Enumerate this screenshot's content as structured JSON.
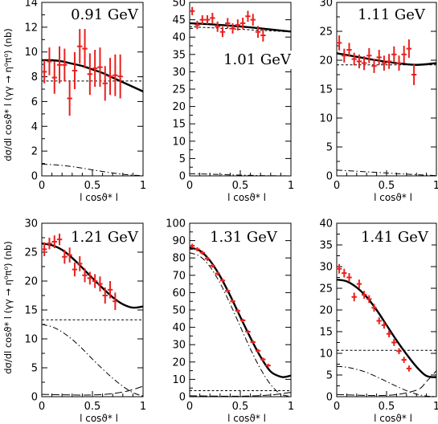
{
  "figure": {
    "ylabel_top": "dσ/dl cosϑ* l (γγ → η⁰π⁰) (nb)",
    "ylabel_bottom": "dσ/dl cosϑ* l (γγ → η⁰π⁰) (nb)"
  },
  "chart_data": [
    {
      "type": "scatter",
      "title": "0.91 GeV",
      "xlabel": "l cosϑ* l",
      "xlim": [
        0,
        1
      ],
      "ylim": [
        0,
        15
      ],
      "xticks": [
        "0",
        "0.5",
        "1"
      ],
      "yticks": [
        "0",
        "2",
        "4",
        "6",
        "8",
        "10",
        "12",
        "14"
      ],
      "points": {
        "x": [
          0.025,
          0.075,
          0.125,
          0.175,
          0.225,
          0.275,
          0.325,
          0.375,
          0.425,
          0.475,
          0.525,
          0.575,
          0.625,
          0.675,
          0.725,
          0.775
        ],
        "y": [
          9.0,
          9.9,
          8.5,
          9.6,
          9.6,
          6.7,
          9.1,
          11.2,
          11.0,
          8.8,
          9.3,
          9.4,
          8.0,
          8.6,
          8.7,
          8.6
        ],
        "err": [
          1.0,
          1.2,
          1.4,
          1.6,
          1.4,
          1.5,
          1.6,
          1.5,
          1.7,
          1.8,
          1.6,
          1.7,
          1.5,
          1.6,
          1.8,
          1.9
        ]
      },
      "curves": [
        {
          "name": "total",
          "x": [
            0,
            0.1,
            0.2,
            0.3,
            0.4,
            0.5,
            0.6,
            0.7,
            0.8,
            0.9,
            1.0
          ],
          "y": [
            10.0,
            10.0,
            9.9,
            9.7,
            9.5,
            9.2,
            8.9,
            8.5,
            8.1,
            7.7,
            7.3
          ]
        },
        {
          "name": "dashed",
          "x": [
            0,
            1
          ],
          "y": [
            8.2,
            8.2
          ]
        },
        {
          "name": "dash-dot",
          "x": [
            0,
            0.1,
            0.2,
            0.3,
            0.4,
            0.5,
            0.6,
            0.7,
            0.8,
            0.9,
            1.0
          ],
          "y": [
            1.0,
            0.97,
            0.9,
            0.8,
            0.67,
            0.52,
            0.38,
            0.25,
            0.14,
            0.06,
            0.02
          ]
        }
      ]
    },
    {
      "type": "scatter",
      "title": "1.01 GeV",
      "xlabel": "l cosϑ* l",
      "xlim": [
        0,
        1
      ],
      "ylim": [
        0,
        50
      ],
      "xticks": [
        "0",
        "0.5",
        "1"
      ],
      "yticks": [
        "0",
        "5",
        "10",
        "15",
        "20",
        "25",
        "30",
        "35",
        "40",
        "45",
        "50"
      ],
      "points": {
        "x": [
          0.025,
          0.075,
          0.125,
          0.175,
          0.225,
          0.275,
          0.325,
          0.375,
          0.425,
          0.475,
          0.525,
          0.575,
          0.625,
          0.675,
          0.725
        ],
        "y": [
          47.5,
          43.5,
          45.0,
          45.0,
          45.5,
          43.0,
          41.5,
          44.0,
          42.5,
          43.5,
          44.0,
          46.0,
          45.0,
          41.5,
          40.5
        ],
        "err": [
          1.2,
          1.2,
          1.3,
          1.3,
          1.5,
          1.5,
          1.5,
          1.5,
          1.5,
          1.6,
          1.6,
          1.6,
          1.7,
          1.7,
          1.8
        ]
      },
      "curves": [
        {
          "name": "total",
          "x": [
            0,
            0.2,
            0.4,
            0.6,
            0.8,
            1.0
          ],
          "y": [
            44.0,
            43.7,
            43.3,
            42.8,
            42.2,
            41.6
          ]
        },
        {
          "name": "dashed",
          "x": [
            0,
            1
          ],
          "y": [
            43.0,
            41.5
          ]
        },
        {
          "name": "dash-dot",
          "x": [
            0,
            0.2,
            0.4,
            0.6,
            0.8,
            1.0
          ],
          "y": [
            0.6,
            0.5,
            0.3,
            0.15,
            0.05,
            0.0
          ]
        }
      ]
    },
    {
      "type": "scatter",
      "title": "1.11 GeV",
      "xlabel": "l cosϑ* l",
      "xlim": [
        0,
        1
      ],
      "ylim": [
        0,
        30
      ],
      "xticks": [
        "0",
        "0.5",
        "1"
      ],
      "yticks": [
        "0",
        "5",
        "10",
        "15",
        "20",
        "25",
        "30"
      ],
      "points": {
        "x": [
          0.025,
          0.075,
          0.125,
          0.175,
          0.225,
          0.275,
          0.325,
          0.375,
          0.425,
          0.475,
          0.525,
          0.575,
          0.625,
          0.675,
          0.725,
          0.775
        ],
        "y": [
          23.0,
          20.8,
          21.8,
          20.2,
          19.8,
          19.5,
          20.8,
          19.0,
          20.5,
          19.5,
          19.8,
          21.0,
          19.5,
          21.0,
          22.0,
          17.5
        ],
        "err": [
          1.3,
          1.2,
          1.2,
          1.1,
          1.2,
          1.2,
          1.3,
          1.2,
          1.3,
          1.3,
          1.3,
          1.4,
          1.3,
          1.5,
          1.6,
          1.8
        ]
      },
      "curves": [
        {
          "name": "total",
          "x": [
            0,
            0.2,
            0.4,
            0.6,
            0.8,
            1.0
          ],
          "y": [
            21.2,
            20.6,
            20.0,
            19.5,
            19.2,
            19.5
          ]
        },
        {
          "name": "dashed",
          "x": [
            0,
            1
          ],
          "y": [
            19.2,
            19.2
          ]
        },
        {
          "name": "dash-dot",
          "x": [
            0,
            0.2,
            0.4,
            0.6,
            0.8,
            1.0
          ],
          "y": [
            1.0,
            0.8,
            0.6,
            0.4,
            0.2,
            0.05
          ]
        }
      ]
    },
    {
      "type": "scatter",
      "title": "1.21 GeV",
      "xlabel": "l cosϑ* l",
      "xlim": [
        0,
        1
      ],
      "ylim": [
        0,
        30
      ],
      "xticks": [
        "0",
        "0.5",
        "1"
      ],
      "yticks": [
        "0",
        "5",
        "10",
        "15",
        "20",
        "25",
        "30"
      ],
      "points": {
        "x": [
          0.025,
          0.075,
          0.125,
          0.175,
          0.225,
          0.275,
          0.325,
          0.375,
          0.425,
          0.475,
          0.525,
          0.575,
          0.625,
          0.675,
          0.725
        ],
        "y": [
          25.5,
          26.5,
          26.8,
          27.2,
          24.2,
          24.5,
          22.0,
          23.0,
          21.0,
          20.5,
          20.0,
          19.5,
          17.5,
          18.5,
          16.5
        ],
        "err": [
          1.2,
          1.0,
          1.1,
          1.0,
          1.2,
          1.3,
          1.2,
          1.3,
          1.2,
          1.1,
          1.2,
          1.3,
          1.4,
          1.5,
          1.5
        ]
      },
      "curves": [
        {
          "name": "total",
          "x": [
            0,
            0.1,
            0.2,
            0.3,
            0.4,
            0.5,
            0.6,
            0.7,
            0.8,
            0.9,
            1.0
          ],
          "y": [
            26.5,
            26.2,
            25.4,
            24.0,
            22.3,
            20.5,
            18.8,
            17.2,
            16.0,
            15.4,
            15.6
          ]
        },
        {
          "name": "dashed",
          "x": [
            0,
            1
          ],
          "y": [
            13.3,
            13.3
          ]
        },
        {
          "name": "dash-dot",
          "x": [
            0,
            0.1,
            0.2,
            0.3,
            0.4,
            0.5,
            0.6,
            0.7,
            0.8,
            0.9,
            1.0
          ],
          "y": [
            12.5,
            12.1,
            11.2,
            9.9,
            8.3,
            6.5,
            4.8,
            3.2,
            1.8,
            0.7,
            0.1
          ]
        },
        {
          "name": "long-dash",
          "x": [
            0,
            0.5,
            0.8,
            1.0
          ],
          "y": [
            0.4,
            0.3,
            0.8,
            1.8
          ]
        }
      ]
    },
    {
      "type": "scatter",
      "title": "1.31 GeV",
      "xlabel": "l cosϑ* l",
      "xlim": [
        0,
        1
      ],
      "ylim": [
        0,
        100
      ],
      "xticks": [
        "0",
        "0.5",
        "1"
      ],
      "yticks": [
        "0",
        "10",
        "20",
        "30",
        "40",
        "50",
        "60",
        "70",
        "80",
        "90",
        "100"
      ],
      "points": {
        "x": [
          0.025,
          0.075,
          0.125,
          0.175,
          0.225,
          0.275,
          0.325,
          0.375,
          0.425,
          0.475,
          0.525,
          0.575,
          0.625,
          0.675,
          0.725,
          0.775
        ],
        "y": [
          87.0,
          85.0,
          83.0,
          79.5,
          75.5,
          71.0,
          67.0,
          61.0,
          55.0,
          49.5,
          44.0,
          37.5,
          31.5,
          26.5,
          21.5,
          18.0
        ],
        "err": [
          1.2,
          1.2,
          1.2,
          1.2,
          1.1,
          1.1,
          1.1,
          1.1,
          1.1,
          1.1,
          1.0,
          1.0,
          1.0,
          1.0,
          1.0,
          1.0
        ]
      },
      "curves": [
        {
          "name": "total",
          "x": [
            0,
            0.1,
            0.2,
            0.3,
            0.4,
            0.5,
            0.6,
            0.7,
            0.8,
            0.9,
            0.95,
            1.0
          ],
          "y": [
            86.0,
            84.2,
            78.5,
            69.5,
            58.3,
            46.0,
            34.0,
            23.0,
            14.5,
            11.5,
            11.5,
            12.2
          ]
        },
        {
          "name": "dashed",
          "x": [
            0,
            1
          ],
          "y": [
            3.5,
            3.5
          ]
        },
        {
          "name": "dash-dot",
          "x": [
            0,
            0.1,
            0.2,
            0.3,
            0.4,
            0.5,
            0.6,
            0.7,
            0.8,
            0.9,
            1.0
          ],
          "y": [
            83.0,
            81.0,
            75.0,
            65.5,
            53.5,
            40.5,
            27.5,
            16.0,
            7.0,
            1.5,
            0.2
          ]
        },
        {
          "name": "long-dash",
          "x": [
            0,
            0.5,
            0.8,
            1.0
          ],
          "y": [
            0.5,
            0.3,
            1.0,
            2.5
          ]
        }
      ]
    },
    {
      "type": "scatter",
      "title": "1.41 GeV",
      "xlabel": "l cosϑ* l",
      "xlim": [
        0,
        1
      ],
      "ylim": [
        0,
        40
      ],
      "xticks": [
        "0",
        "0.5",
        "1"
      ],
      "yticks": [
        "0",
        "5",
        "10",
        "15",
        "20",
        "25",
        "30",
        "35",
        "40"
      ],
      "points": {
        "x": [
          0.025,
          0.075,
          0.125,
          0.175,
          0.225,
          0.275,
          0.325,
          0.375,
          0.425,
          0.475,
          0.525,
          0.575,
          0.625,
          0.675,
          0.725
        ],
        "y": [
          29.5,
          28.5,
          27.5,
          23.0,
          26.0,
          23.5,
          22.5,
          20.5,
          17.5,
          16.5,
          14.5,
          12.5,
          10.5,
          8.5,
          6.5
        ],
        "err": [
          1.1,
          1.0,
          1.0,
          1.0,
          1.0,
          0.9,
          0.9,
          0.9,
          0.8,
          0.8,
          0.8,
          0.8,
          0.7,
          0.7,
          0.7
        ]
      },
      "curves": [
        {
          "name": "total",
          "x": [
            0,
            0.1,
            0.2,
            0.3,
            0.4,
            0.5,
            0.6,
            0.7,
            0.8,
            0.9,
            1.0
          ],
          "y": [
            27.0,
            26.6,
            25.2,
            23.0,
            20.0,
            16.5,
            13.0,
            9.8,
            6.9,
            4.8,
            4.5
          ]
        },
        {
          "name": "dashed",
          "x": [
            0,
            1
          ],
          "y": [
            10.7,
            10.7
          ]
        },
        {
          "name": "dash-dot",
          "x": [
            0,
            0.1,
            0.2,
            0.3,
            0.4,
            0.5,
            0.6,
            0.7,
            0.8,
            0.9,
            1.0
          ],
          "y": [
            7.0,
            6.8,
            6.3,
            5.6,
            4.6,
            3.5,
            2.4,
            1.4,
            0.6,
            0.15,
            0.05
          ]
        },
        {
          "name": "long-dash",
          "x": [
            0,
            0.5,
            0.8,
            0.9,
            1.0
          ],
          "y": [
            0.5,
            0.3,
            1.5,
            3.5,
            6.0
          ]
        }
      ]
    }
  ]
}
